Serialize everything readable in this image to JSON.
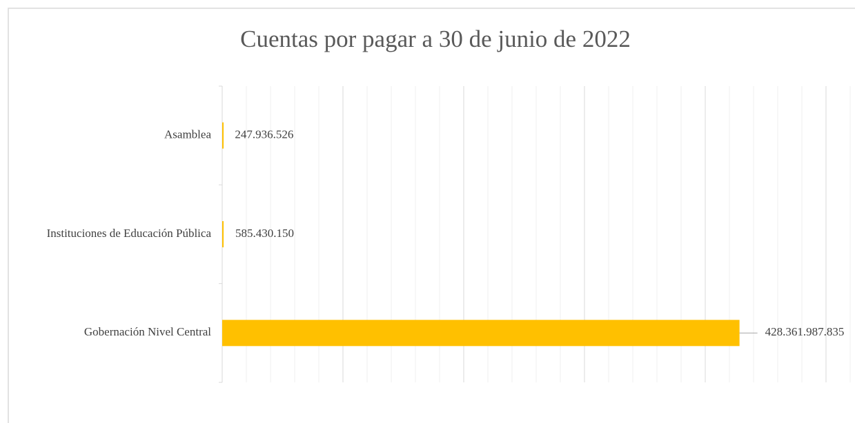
{
  "chart_data": {
    "type": "bar",
    "orientation": "horizontal",
    "title": "Cuentas por pagar a 30 de junio de 2022",
    "categories": [
      "Asamblea",
      "Instituciones de Educación Pública",
      "Gobernación Nivel Central"
    ],
    "values": [
      247936526,
      585430150,
      428361987835
    ],
    "value_labels": [
      "247.936.526",
      "585.430.150",
      "428.361.987.835"
    ],
    "color": "#ffc000",
    "xlim": [
      0,
      500000000000
    ],
    "xticks": [
      0,
      100000000000,
      200000000000,
      300000000000,
      400000000000,
      500000000000
    ],
    "grid": true
  }
}
